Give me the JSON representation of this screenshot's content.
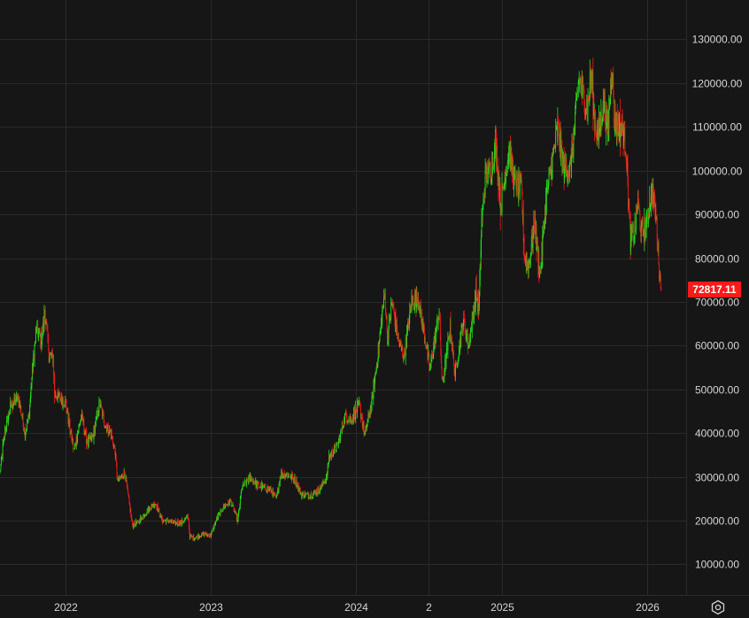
{
  "chart_data": {
    "type": "candlestick",
    "y_axis": {
      "ticks": [
        10000,
        20000,
        30000,
        40000,
        50000,
        60000,
        70000,
        80000,
        90000,
        100000,
        110000,
        120000,
        130000
      ],
      "tick_labels": [
        "10000.00",
        "20000.00",
        "30000.00",
        "40000.00",
        "50000.00",
        "60000.00",
        "70000.00",
        "80000.00",
        "90000.00",
        "100000.00",
        "110000.00",
        "120000.00",
        "130000.00"
      ],
      "range": [
        3000,
        139000
      ],
      "position": "right"
    },
    "x_axis": {
      "range": [
        "2021-07-20",
        "2026-04-10"
      ],
      "ticks": [
        {
          "date": "2022-01-01",
          "label": "2022"
        },
        {
          "date": "2023-01-01",
          "label": "2023"
        },
        {
          "date": "2024-01-01",
          "label": "2024"
        },
        {
          "date": "2024-07-01",
          "label": "2"
        },
        {
          "date": "2025-01-01",
          "label": "2025"
        },
        {
          "date": "2026-01-01",
          "label": "2026"
        }
      ]
    },
    "grid": true,
    "last_price": {
      "value": 72817.11,
      "label": "72817.11",
      "color": "#ff1a1a"
    },
    "up_color": "#22e01a",
    "down_color": "#ee1b1b",
    "series": [
      {
        "values": [
          [
            "2021-07-20",
            31000
          ],
          [
            "2021-08-01",
            40000
          ],
          [
            "2021-08-15",
            46000
          ],
          [
            "2021-09-01",
            48000
          ],
          [
            "2021-09-07",
            47000
          ],
          [
            "2021-09-21",
            40000
          ],
          [
            "2021-10-01",
            44000
          ],
          [
            "2021-10-10",
            55000
          ],
          [
            "2021-10-20",
            64000
          ],
          [
            "2021-11-01",
            61000
          ],
          [
            "2021-11-10",
            68000
          ],
          [
            "2021-11-20",
            58000
          ],
          [
            "2021-12-01",
            57000
          ],
          [
            "2021-12-04",
            49000
          ],
          [
            "2021-12-20",
            48000
          ],
          [
            "2022-01-01",
            47000
          ],
          [
            "2022-01-10",
            42000
          ],
          [
            "2022-01-22",
            36000
          ],
          [
            "2022-02-10",
            44000
          ],
          [
            "2022-02-24",
            38000
          ],
          [
            "2022-03-10",
            39000
          ],
          [
            "2022-03-28",
            47000
          ],
          [
            "2022-04-10",
            42000
          ],
          [
            "2022-04-25",
            40000
          ],
          [
            "2022-05-05",
            36000
          ],
          [
            "2022-05-12",
            29000
          ],
          [
            "2022-05-30",
            31000
          ],
          [
            "2022-06-13",
            22000
          ],
          [
            "2022-06-18",
            19000
          ],
          [
            "2022-07-01",
            19500
          ],
          [
            "2022-07-15",
            21000
          ],
          [
            "2022-08-01",
            23000
          ],
          [
            "2022-08-15",
            24000
          ],
          [
            "2022-09-01",
            20000
          ],
          [
            "2022-09-15",
            20000
          ],
          [
            "2022-10-01",
            19500
          ],
          [
            "2022-10-20",
            19500
          ],
          [
            "2022-11-05",
            21000
          ],
          [
            "2022-11-09",
            16500
          ],
          [
            "2022-11-20",
            16000
          ],
          [
            "2022-12-15",
            17000
          ],
          [
            "2023-01-01",
            16600
          ],
          [
            "2023-01-14",
            20000
          ],
          [
            "2023-02-01",
            23000
          ],
          [
            "2023-02-20",
            24500
          ],
          [
            "2023-03-10",
            20000
          ],
          [
            "2023-03-20",
            27500
          ],
          [
            "2023-04-10",
            30000
          ],
          [
            "2023-05-01",
            28000
          ],
          [
            "2023-06-01",
            27000
          ],
          [
            "2023-06-15",
            25000
          ],
          [
            "2023-06-25",
            30500
          ],
          [
            "2023-07-15",
            30500
          ],
          [
            "2023-08-01",
            29300
          ],
          [
            "2023-08-17",
            26000
          ],
          [
            "2023-09-10",
            25800
          ],
          [
            "2023-09-30",
            27000
          ],
          [
            "2023-10-20",
            30000
          ],
          [
            "2023-10-25",
            34500
          ],
          [
            "2023-11-15",
            37000
          ],
          [
            "2023-12-05",
            44000
          ],
          [
            "2023-12-20",
            43000
          ],
          [
            "2024-01-10",
            46500
          ],
          [
            "2024-01-23",
            39500
          ],
          [
            "2024-02-10",
            47000
          ],
          [
            "2024-02-28",
            60000
          ],
          [
            "2024-03-05",
            66000
          ],
          [
            "2024-03-14",
            72000
          ],
          [
            "2024-03-20",
            62000
          ],
          [
            "2024-04-01",
            70000
          ],
          [
            "2024-04-17",
            61000
          ],
          [
            "2024-05-01",
            57500
          ],
          [
            "2024-05-20",
            70000
          ],
          [
            "2024-06-05",
            71000
          ],
          [
            "2024-06-25",
            60500
          ],
          [
            "2024-07-05",
            54500
          ],
          [
            "2024-07-28",
            68000
          ],
          [
            "2024-08-05",
            51000
          ],
          [
            "2024-08-25",
            64000
          ],
          [
            "2024-09-06",
            53500
          ],
          [
            "2024-09-27",
            66000
          ],
          [
            "2024-10-10",
            60000
          ],
          [
            "2024-10-29",
            72000
          ],
          [
            "2024-11-05",
            68000
          ],
          [
            "2024-11-12",
            88000
          ],
          [
            "2024-11-22",
            99000
          ],
          [
            "2024-12-05",
            100000
          ],
          [
            "2024-12-17",
            106000
          ],
          [
            "2024-12-30",
            92000
          ],
          [
            "2025-01-20",
            105000
          ],
          [
            "2025-02-01",
            98000
          ],
          [
            "2025-02-20",
            96000
          ],
          [
            "2025-02-28",
            80000
          ],
          [
            "2025-03-10",
            78000
          ],
          [
            "2025-03-25",
            88000
          ],
          [
            "2025-04-08",
            76000
          ],
          [
            "2025-04-22",
            93000
          ],
          [
            "2025-05-10",
            103000
          ],
          [
            "2025-05-22",
            110000
          ],
          [
            "2025-06-05",
            101000
          ],
          [
            "2025-06-22",
            100000
          ],
          [
            "2025-07-01",
            107000
          ],
          [
            "2025-07-14",
            121000
          ],
          [
            "2025-07-25",
            117500
          ],
          [
            "2025-08-05",
            114000
          ],
          [
            "2025-08-14",
            122000
          ],
          [
            "2025-08-25",
            110000
          ],
          [
            "2025-09-01",
            108000
          ],
          [
            "2025-09-15",
            116000
          ],
          [
            "2025-09-25",
            109000
          ],
          [
            "2025-10-06",
            125000
          ],
          [
            "2025-10-10",
            112000
          ],
          [
            "2025-10-20",
            110000
          ],
          [
            "2025-11-01",
            110000
          ],
          [
            "2025-11-10",
            105000
          ],
          [
            "2025-11-21",
            84000
          ],
          [
            "2025-12-01",
            86000
          ],
          [
            "2025-12-10",
            93000
          ],
          [
            "2025-12-18",
            86000
          ],
          [
            "2026-01-01",
            88000
          ],
          [
            "2026-01-14",
            96000
          ],
          [
            "2026-01-25",
            89000
          ],
          [
            "2026-02-01",
            78000
          ],
          [
            "2026-02-06",
            72817.11
          ]
        ]
      }
    ]
  }
}
